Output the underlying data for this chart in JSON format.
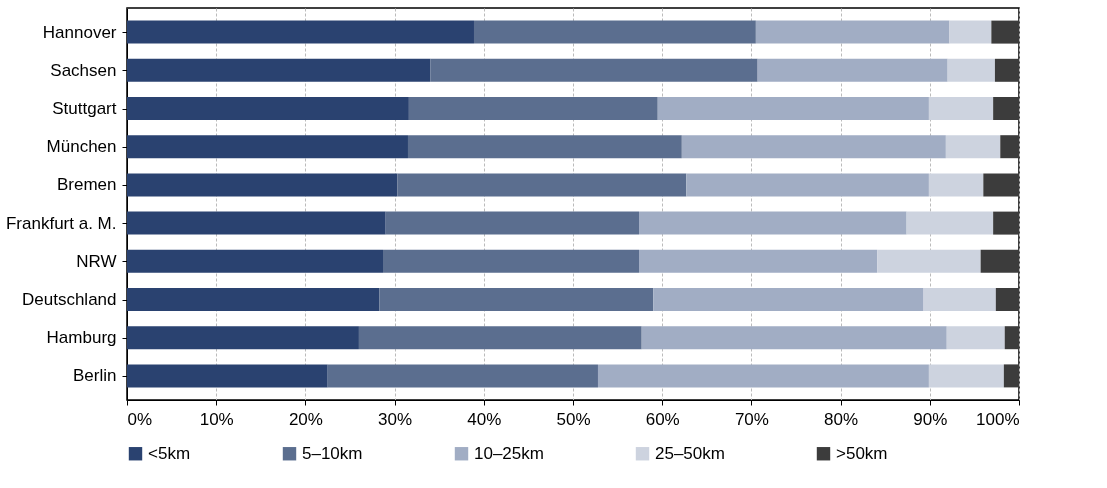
{
  "chart_data": {
    "type": "bar",
    "orientation": "horizontal",
    "stacked": true,
    "categories": [
      "Hannover",
      "Sachsen",
      "Stuttgart",
      "München",
      "Bremen",
      "Frankfurt a. M.",
      "NRW",
      "Deutschland",
      "Hamburg",
      "Berlin"
    ],
    "series": [
      {
        "name": "<5km",
        "color": "#2a4270",
        "values": [
          38.9,
          34.0,
          31.6,
          31.5,
          30.3,
          29.0,
          28.7,
          28.3,
          26.0,
          22.5
        ]
      },
      {
        "name": "5–10km",
        "color": "#5b6e8f",
        "values": [
          31.6,
          36.7,
          27.9,
          30.7,
          32.4,
          28.4,
          28.7,
          30.7,
          31.7,
          30.3
        ]
      },
      {
        "name": "10–25km",
        "color": "#a1adc4",
        "values": [
          21.7,
          21.3,
          30.4,
          29.6,
          27.2,
          30.0,
          26.7,
          30.3,
          34.2,
          37.1
        ]
      },
      {
        "name": "25–50km",
        "color": "#cdd3df",
        "values": [
          4.7,
          5.3,
          7.2,
          6.1,
          6.1,
          9.7,
          11.6,
          8.1,
          6.5,
          8.4
        ]
      },
      {
        "name": ">50km",
        "color": "#3c3c3c",
        "values": [
          3.1,
          2.7,
          2.9,
          2.1,
          4.0,
          2.9,
          4.3,
          2.6,
          1.6,
          1.7
        ]
      }
    ],
    "xlim": [
      0,
      100
    ],
    "xticks": [
      {
        "value": 0,
        "label": "0%"
      },
      {
        "value": 10,
        "label": "10%"
      },
      {
        "value": 20,
        "label": "20%"
      },
      {
        "value": 30,
        "label": "30%"
      },
      {
        "value": 40,
        "label": "40%"
      },
      {
        "value": 50,
        "label": "50%"
      },
      {
        "value": 60,
        "label": "60%"
      },
      {
        "value": 70,
        "label": "70%"
      },
      {
        "value": 80,
        "label": "80%"
      },
      {
        "value": 90,
        "label": "90%"
      },
      {
        "value": 100,
        "label": "100%"
      }
    ],
    "grid": "x",
    "legend": "bottom"
  }
}
